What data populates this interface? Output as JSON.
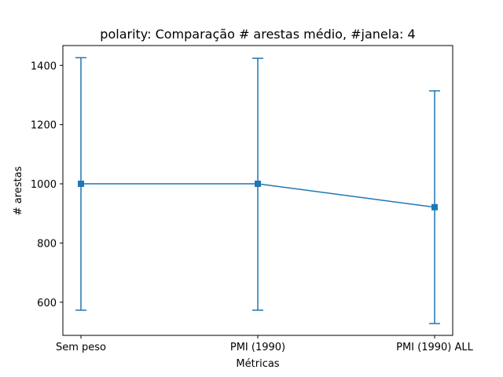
{
  "chart_data": {
    "type": "line",
    "title": "polarity: Comparação # arestas médio, #janela: 4",
    "xlabel": "Métricas",
    "ylabel": "# arestas",
    "categories": [
      "Sem peso",
      "PMI (1990)",
      "PMI (1990) ALL"
    ],
    "series": [
      {
        "values": [
          1000,
          1000,
          921
        ],
        "error_low": [
          573,
          573,
          528
        ],
        "error_high": [
          1426,
          1424,
          1314
        ],
        "color": "#1f77b4",
        "marker": "square"
      }
    ],
    "ylim": [
      488,
      1467
    ],
    "yticks": [
      600,
      800,
      1000,
      1200,
      1400
    ],
    "grid": false,
    "legend": "none"
  }
}
